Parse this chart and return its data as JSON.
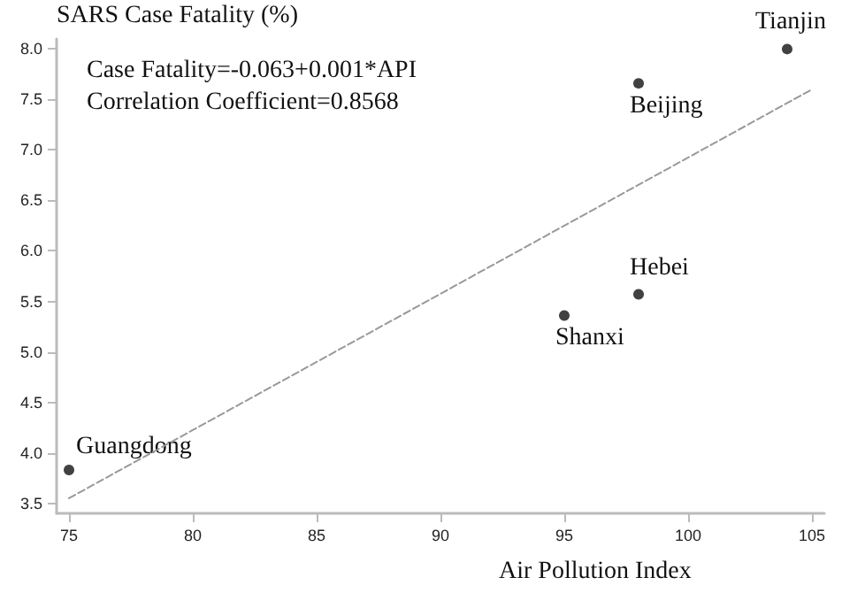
{
  "chart_data": {
    "type": "scatter",
    "ylabel": "SARS Case Fatality (%)",
    "xlabel": "Air Pollution Index",
    "xlim": [
      74.5,
      105.5
    ],
    "xticks": [
      75,
      80,
      85,
      90,
      95,
      100,
      105
    ],
    "ylim": [
      3.4,
      8.1
    ],
    "yticks": [
      3.5,
      {
        "value": 4,
        "label": "4.0"
      },
      4.5,
      {
        "value": 5,
        "label": "5.0"
      },
      5.5,
      {
        "value": 6,
        "label": "6.0"
      },
      6.5,
      {
        "value": 7,
        "label": "7.0"
      },
      7.5,
      {
        "value": 8,
        "label": "8.0"
      }
    ],
    "grid": false,
    "marker": "circle",
    "series": [
      {
        "color": "#111111",
        "x": [
          75,
          95,
          98,
          98,
          104
        ],
        "values": [
          3.83,
          5.36,
          5.57,
          7.66,
          8.0
        ]
      },
      {
        "type": "line",
        "color": "#999999",
        "line_style": "dashed",
        "marker": "none",
        "x": [
          75,
          105
        ],
        "values": [
          3.55,
          7.6
        ]
      }
    ],
    "annotations": [
      "Case Fatality=-0.063+0.001*API",
      "Correlation Coefficient=0.8568",
      {
        "text": "Guangdong",
        "x": 75,
        "y": 3.83
      },
      {
        "text": "Shanxi",
        "x": 95,
        "y": 5.36
      },
      {
        "text": "Hebei",
        "x": 98,
        "y": 5.57
      },
      {
        "text": "Beijing",
        "x": 98,
        "y": 7.66
      },
      {
        "text": "Tianjin",
        "x": 104,
        "y": 8.0
      }
    ]
  }
}
